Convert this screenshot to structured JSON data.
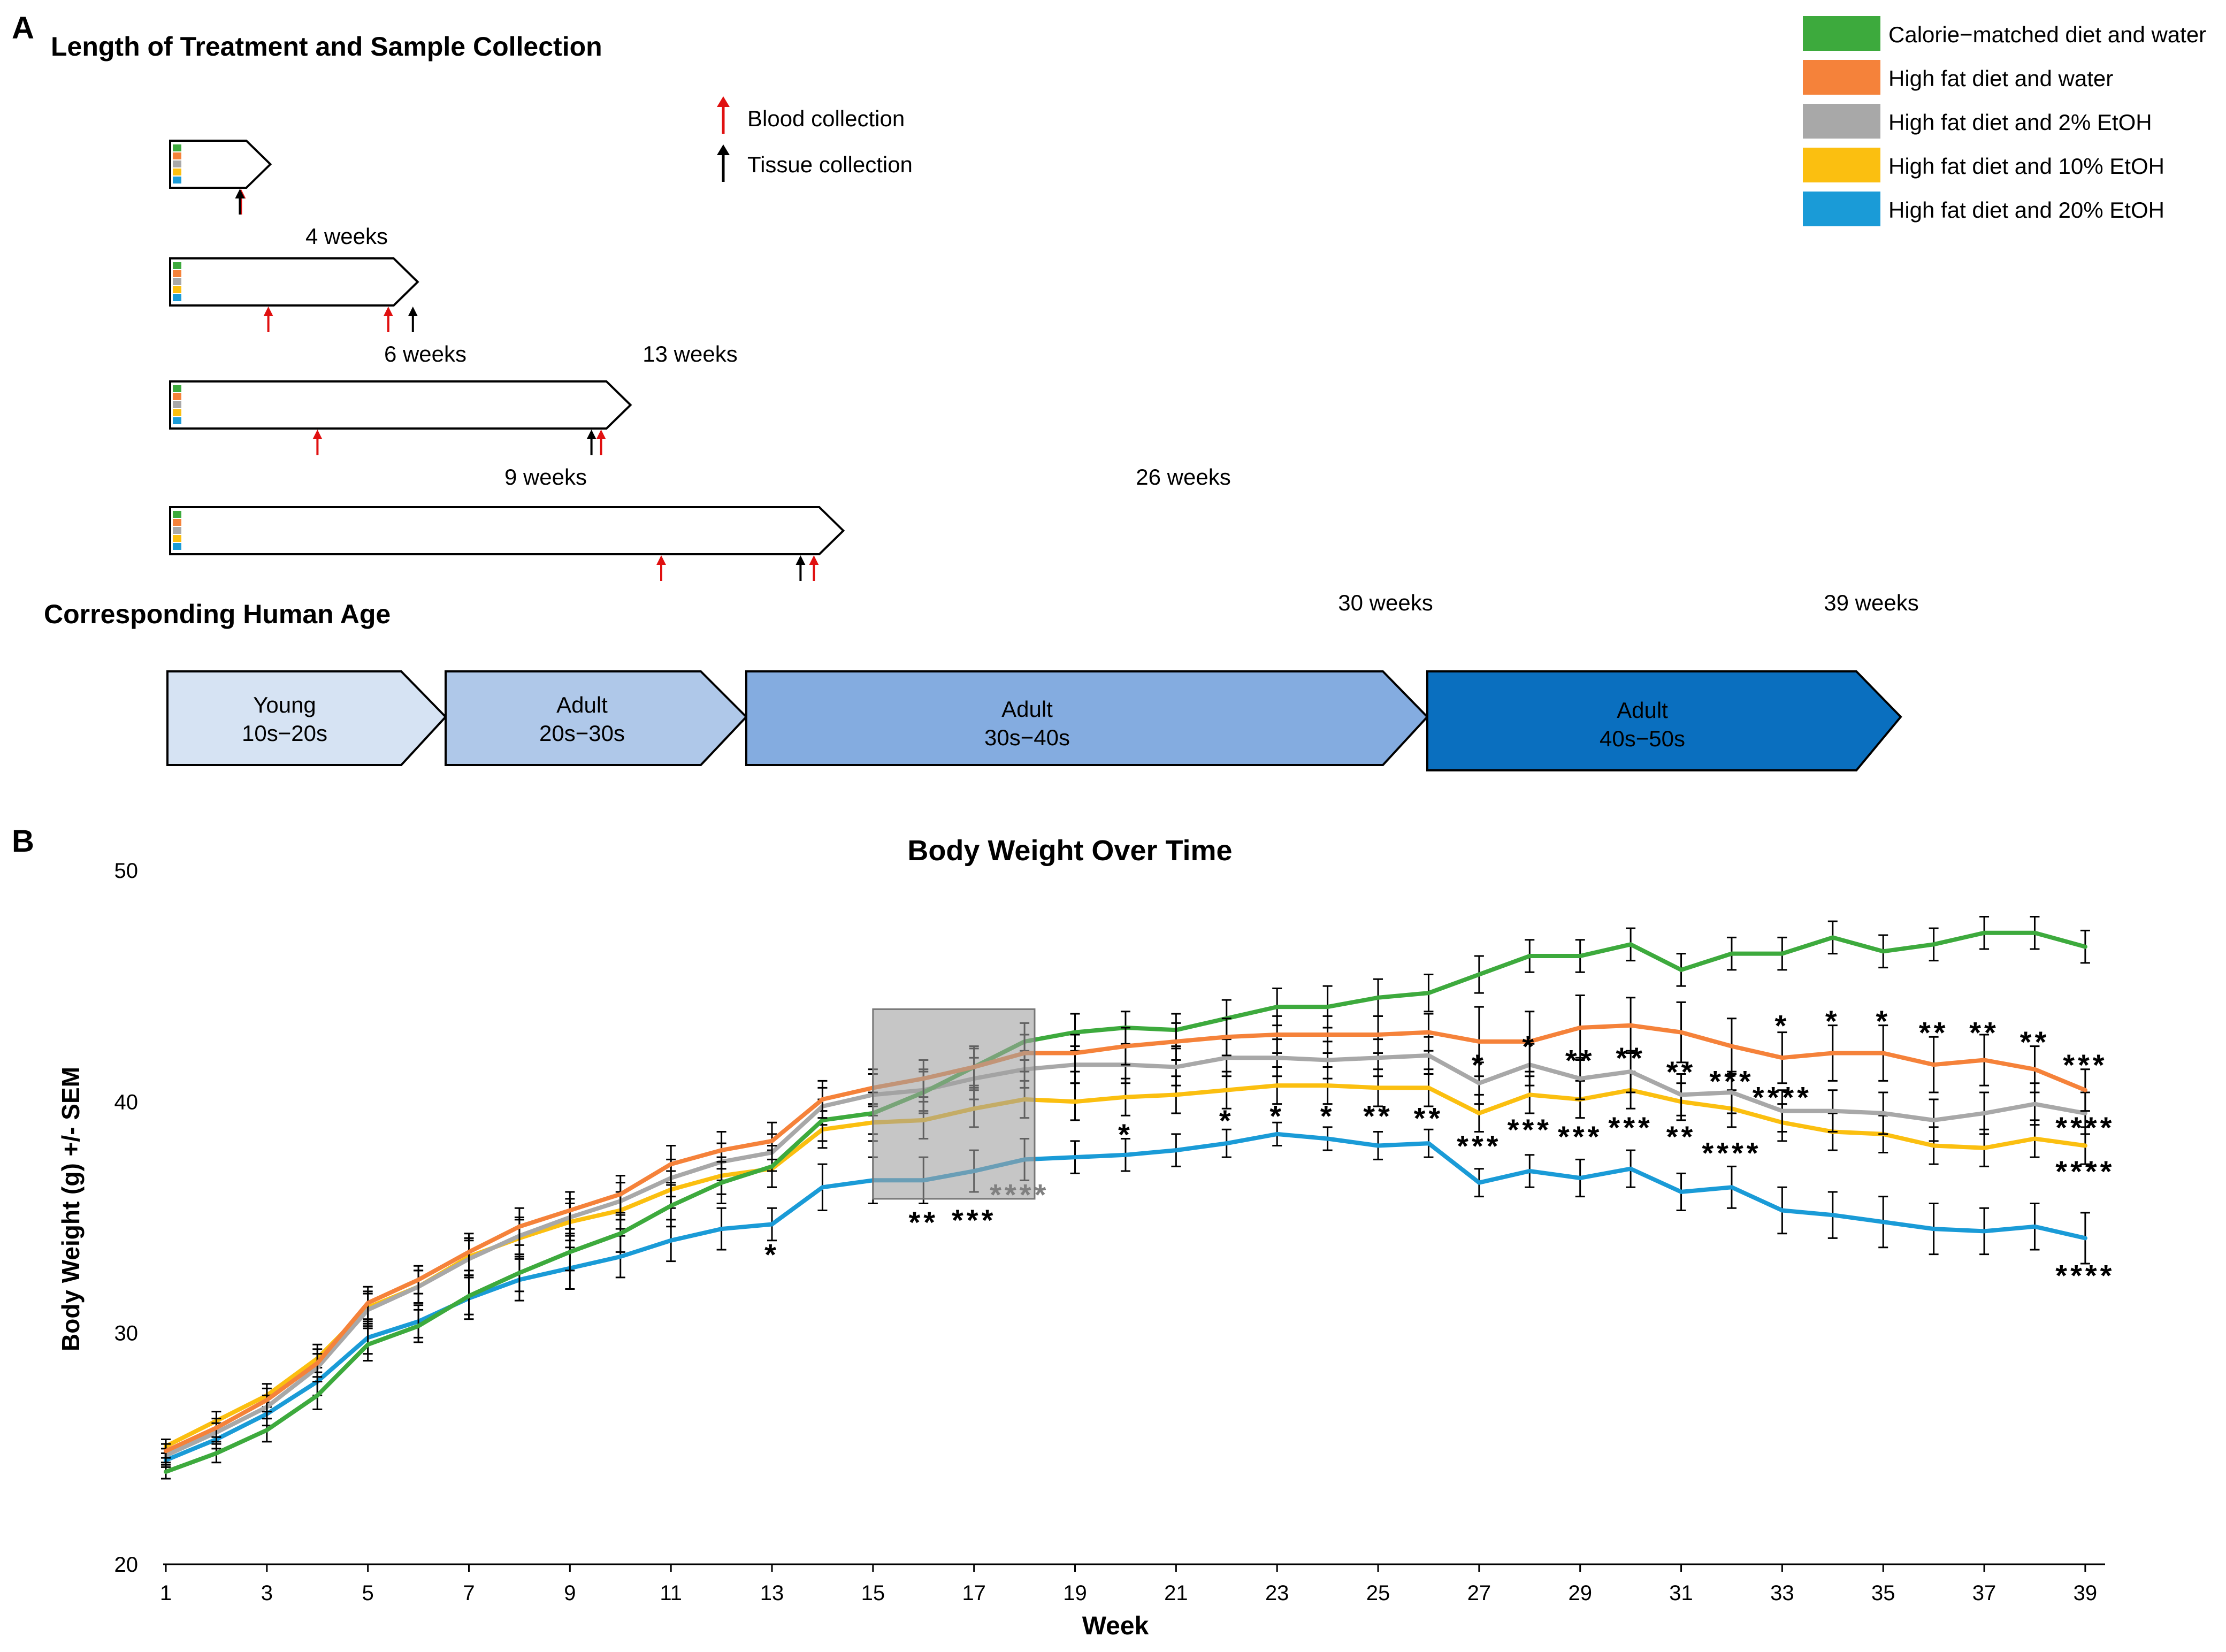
{
  "panel_a": {
    "label": "A",
    "title": "Length of Treatment and Sample Collection",
    "markers_legend": [
      {
        "label": "Blood collection",
        "color": "#e01010"
      },
      {
        "label": "Tissue collection",
        "color": "#000000"
      }
    ],
    "timelines": [
      {
        "end_week": 4,
        "blood_weeks": [
          4
        ],
        "tissue_weeks": [
          4
        ],
        "labels": [
          "4 weeks"
        ]
      },
      {
        "end_week": 13,
        "blood_weeks": [
          6,
          13
        ],
        "tissue_weeks": [
          13
        ],
        "labels": [
          "6 weeks",
          "13 weeks"
        ]
      },
      {
        "end_week": 26,
        "blood_weeks": [
          9,
          26
        ],
        "tissue_weeks": [
          26
        ],
        "labels": [
          "9 weeks",
          "26 weeks"
        ]
      },
      {
        "end_week": 39,
        "blood_weeks": [
          30,
          39
        ],
        "tissue_weeks": [
          39
        ],
        "labels": [
          "30 weeks",
          "39 weeks"
        ]
      }
    ],
    "group_colors": [
      "#3daa3d",
      "#f5823a",
      "#a8a8a8",
      "#fbbf10",
      "#1a9bd7"
    ],
    "age_title": "Corresponding Human Age",
    "age_stages": [
      {
        "line1": "Young",
        "line2": "10s−20s",
        "fill": "#d6e3f3",
        "text_color": "#000000",
        "end_week": 6
      },
      {
        "line1": "Adult",
        "line2": "20s−30s",
        "fill": "#afc8e9",
        "text_color": "#000000",
        "end_week": 13
      },
      {
        "line1": "Adult",
        "line2": "30s−40s",
        "fill": "#84ace0",
        "text_color": "#000000",
        "end_week": 26
      },
      {
        "line1": "Adult",
        "line2": "40s−50s",
        "fill": "#0a6fbf",
        "text_color": "#000000",
        "end_week": 39
      }
    ]
  },
  "legend": [
    {
      "label": "Calorie−matched diet and water",
      "color": "#3daa3d"
    },
    {
      "label": "High fat diet and water",
      "color": "#f5823a"
    },
    {
      "label": "High fat diet and 2% EtOH",
      "color": "#a8a8a8"
    },
    {
      "label": "High fat diet and 10% EtOH",
      "color": "#fbbf10"
    },
    {
      "label": "High fat diet and 20% EtOH",
      "color": "#1a9bd7"
    }
  ],
  "panel_b": {
    "label": "B"
  },
  "chart_data": {
    "type": "line",
    "title": "Body Weight Over Time",
    "xlabel": "Week",
    "ylabel": "Body Weight (g) +/- SEM",
    "xlim": [
      1,
      39
    ],
    "ylim": [
      20,
      50
    ],
    "xticks": [
      1,
      3,
      5,
      7,
      9,
      11,
      13,
      15,
      17,
      19,
      21,
      23,
      25,
      27,
      29,
      31,
      33,
      35,
      37,
      39
    ],
    "yticks": [
      20,
      30,
      40,
      50
    ],
    "grid": false,
    "shaded_region": {
      "x": [
        15,
        18.2
      ],
      "y": [
        35.8,
        44.0
      ],
      "color": "#a0a0a0"
    },
    "x": [
      1,
      2,
      3,
      4,
      5,
      6,
      7,
      8,
      9,
      10,
      11,
      12,
      13,
      14,
      15,
      16,
      17,
      18,
      19,
      20,
      21,
      22,
      23,
      24,
      25,
      26,
      27,
      28,
      29,
      30,
      31,
      32,
      33,
      34,
      35,
      36,
      37,
      38,
      39
    ],
    "series": [
      {
        "name": "Calorie−matched diet and water",
        "color": "#3daa3d",
        "values": [
          24.0,
          24.8,
          25.8,
          27.3,
          29.5,
          30.3,
          31.6,
          32.6,
          33.5,
          34.3,
          35.5,
          36.5,
          37.2,
          39.2,
          39.5,
          40.4,
          41.5,
          42.6,
          43.0,
          43.2,
          43.1,
          43.6,
          44.1,
          44.1,
          44.5,
          44.7,
          45.5,
          46.3,
          46.3,
          46.8,
          45.7,
          46.4,
          46.4,
          47.1,
          46.5,
          46.8,
          47.3,
          47.3,
          46.7
        ],
        "errors": [
          0.3,
          0.4,
          0.5,
          0.6,
          0.7,
          0.7,
          0.8,
          0.8,
          0.8,
          0.8,
          0.9,
          0.9,
          0.9,
          0.9,
          0.9,
          0.9,
          0.9,
          0.8,
          0.8,
          0.7,
          0.7,
          0.8,
          0.8,
          0.9,
          0.8,
          0.8,
          0.8,
          0.7,
          0.7,
          0.7,
          0.7,
          0.7,
          0.7,
          0.7,
          0.7,
          0.7,
          0.7,
          0.7,
          0.7
        ]
      },
      {
        "name": "High fat diet and water",
        "color": "#f5823a",
        "values": [
          24.9,
          25.9,
          27.1,
          28.7,
          31.3,
          32.3,
          33.5,
          34.6,
          35.3,
          36.0,
          37.3,
          37.9,
          38.3,
          40.1,
          40.6,
          41.0,
          41.5,
          42.1,
          42.1,
          42.4,
          42.6,
          42.8,
          42.9,
          42.9,
          42.9,
          43.0,
          42.6,
          42.6,
          43.2,
          43.3,
          43.0,
          42.4,
          41.9,
          42.1,
          42.1,
          41.6,
          41.8,
          41.4,
          40.5
        ],
        "errors": [
          0.3,
          0.4,
          0.5,
          0.6,
          0.7,
          0.6,
          0.8,
          0.8,
          0.8,
          0.8,
          0.8,
          0.8,
          0.8,
          0.8,
          0.8,
          0.8,
          0.8,
          0.8,
          0.8,
          0.8,
          0.8,
          0.8,
          0.8,
          0.8,
          0.8,
          0.8,
          1.5,
          1.3,
          1.4,
          1.2,
          1.3,
          1.2,
          1.1,
          1.2,
          1.2,
          1.2,
          1.1,
          1.0,
          0.9
        ]
      },
      {
        "name": "High fat diet and 2% EtOH",
        "color": "#a8a8a8",
        "values": [
          24.7,
          25.7,
          26.8,
          28.5,
          31.0,
          32.0,
          33.2,
          34.2,
          35.0,
          35.7,
          36.7,
          37.4,
          37.8,
          39.8,
          40.3,
          40.5,
          41.0,
          41.4,
          41.6,
          41.6,
          41.5,
          41.9,
          41.9,
          41.8,
          41.9,
          42.0,
          40.8,
          41.6,
          41.0,
          41.3,
          40.3,
          40.4,
          39.6,
          39.6,
          39.5,
          39.2,
          39.5,
          39.9,
          39.5
        ],
        "errors": [
          0.3,
          0.4,
          0.5,
          0.6,
          0.7,
          0.7,
          0.8,
          0.8,
          0.8,
          0.8,
          0.8,
          0.8,
          0.8,
          0.8,
          0.9,
          0.9,
          0.9,
          0.8,
          0.8,
          0.8,
          0.8,
          0.8,
          0.8,
          0.8,
          0.8,
          0.8,
          0.9,
          0.9,
          0.9,
          0.9,
          0.9,
          0.9,
          0.9,
          0.9,
          0.9,
          0.9,
          0.9,
          0.9,
          0.9
        ]
      },
      {
        "name": "High fat diet and 10% EtOH",
        "color": "#fbbf10",
        "values": [
          25.1,
          26.2,
          27.3,
          28.9,
          31.1,
          32.0,
          33.3,
          34.1,
          34.8,
          35.3,
          36.2,
          36.8,
          37.1,
          38.8,
          39.1,
          39.2,
          39.7,
          40.1,
          40.0,
          40.2,
          40.3,
          40.5,
          40.7,
          40.7,
          40.6,
          40.6,
          39.5,
          40.3,
          40.1,
          40.5,
          40.0,
          39.7,
          39.1,
          38.7,
          38.6,
          38.1,
          38.0,
          38.4,
          38.1
        ],
        "errors": [
          0.3,
          0.4,
          0.5,
          0.6,
          0.7,
          0.7,
          0.8,
          0.8,
          0.8,
          0.8,
          0.8,
          0.8,
          0.8,
          0.8,
          0.8,
          0.8,
          0.8,
          0.8,
          0.8,
          0.8,
          0.8,
          0.8,
          0.8,
          0.8,
          0.8,
          0.8,
          0.8,
          0.8,
          0.8,
          0.8,
          0.8,
          0.8,
          0.8,
          0.8,
          0.8,
          0.8,
          0.8,
          0.8,
          0.8
        ]
      },
      {
        "name": "High fat diet and 20% EtOH",
        "color": "#1a9bd7",
        "values": [
          24.5,
          25.4,
          26.5,
          27.9,
          29.8,
          30.5,
          31.5,
          32.3,
          32.8,
          33.3,
          34.0,
          34.5,
          34.7,
          36.3,
          36.6,
          36.6,
          37.0,
          37.5,
          37.6,
          37.7,
          37.9,
          38.2,
          38.6,
          38.4,
          38.1,
          38.2,
          36.5,
          37.0,
          36.7,
          37.1,
          36.1,
          36.3,
          35.3,
          35.1,
          34.8,
          34.5,
          34.4,
          34.6,
          34.1
        ],
        "errors": [
          0.3,
          0.4,
          0.5,
          0.6,
          0.7,
          0.7,
          0.9,
          0.9,
          0.9,
          0.9,
          0.9,
          0.9,
          0.7,
          1.0,
          1.0,
          1.0,
          0.9,
          0.9,
          0.7,
          0.7,
          0.7,
          0.6,
          0.5,
          0.5,
          0.6,
          0.6,
          0.6,
          0.7,
          0.8,
          0.8,
          0.8,
          0.9,
          1.0,
          1.0,
          1.1,
          1.1,
          1.0,
          1.0,
          1.1
        ]
      }
    ],
    "annotations": [
      {
        "text": "*",
        "x": 13,
        "y": 33.4,
        "color": "#000000"
      },
      {
        "text": "**",
        "x": 16,
        "y": 34.8,
        "color": "#000000"
      },
      {
        "text": "***",
        "x": 17,
        "y": 34.9,
        "color": "#000000"
      },
      {
        "text": "****",
        "x": 17.9,
        "y": 36.0,
        "color": "#808080"
      },
      {
        "text": "*",
        "x": 20,
        "y": 38.6,
        "color": "#000000"
      },
      {
        "text": "*",
        "x": 22,
        "y": 39.2,
        "color": "#000000"
      },
      {
        "text": "*",
        "x": 23,
        "y": 39.4,
        "color": "#000000"
      },
      {
        "text": "*",
        "x": 24,
        "y": 39.4,
        "color": "#000000"
      },
      {
        "text": "**",
        "x": 25,
        "y": 39.4,
        "color": "#000000"
      },
      {
        "text": "**",
        "x": 26,
        "y": 39.3,
        "color": "#000000"
      },
      {
        "text": "*",
        "x": 27,
        "y": 41.6,
        "color": "#000000"
      },
      {
        "text": "***",
        "x": 27,
        "y": 38.1,
        "color": "#000000"
      },
      {
        "text": "*",
        "x": 28,
        "y": 42.4,
        "color": "#000000"
      },
      {
        "text": "***",
        "x": 28,
        "y": 38.8,
        "color": "#000000"
      },
      {
        "text": "**",
        "x": 29,
        "y": 41.8,
        "color": "#000000"
      },
      {
        "text": "***",
        "x": 29,
        "y": 38.5,
        "color": "#000000"
      },
      {
        "text": "**",
        "x": 30,
        "y": 41.9,
        "color": "#000000"
      },
      {
        "text": "***",
        "x": 30,
        "y": 38.9,
        "color": "#000000"
      },
      {
        "text": "**",
        "x": 31,
        "y": 41.3,
        "color": "#000000"
      },
      {
        "text": "**",
        "x": 31,
        "y": 38.5,
        "color": "#000000"
      },
      {
        "text": "***",
        "x": 32,
        "y": 40.9,
        "color": "#000000"
      },
      {
        "text": "****",
        "x": 32,
        "y": 37.8,
        "color": "#000000"
      },
      {
        "text": "****",
        "x": 33,
        "y": 40.2,
        "color": "#000000"
      },
      {
        "text": "*",
        "x": 33,
        "y": 43.3,
        "color": "#000000"
      },
      {
        "text": "*",
        "x": 34,
        "y": 43.5,
        "color": "#000000"
      },
      {
        "text": "*",
        "x": 35,
        "y": 43.5,
        "color": "#000000"
      },
      {
        "text": "**",
        "x": 36,
        "y": 43.0,
        "color": "#000000"
      },
      {
        "text": "**",
        "x": 37,
        "y": 43.0,
        "color": "#000000"
      },
      {
        "text": "**",
        "x": 38,
        "y": 42.6,
        "color": "#000000"
      },
      {
        "text": "***",
        "x": 39,
        "y": 41.6,
        "color": "#000000"
      },
      {
        "text": "****",
        "x": 39,
        "y": 38.9,
        "color": "#000000"
      },
      {
        "text": "****",
        "x": 39,
        "y": 37.0,
        "color": "#000000"
      },
      {
        "text": "****",
        "x": 39,
        "y": 32.5,
        "color": "#000000"
      }
    ]
  }
}
